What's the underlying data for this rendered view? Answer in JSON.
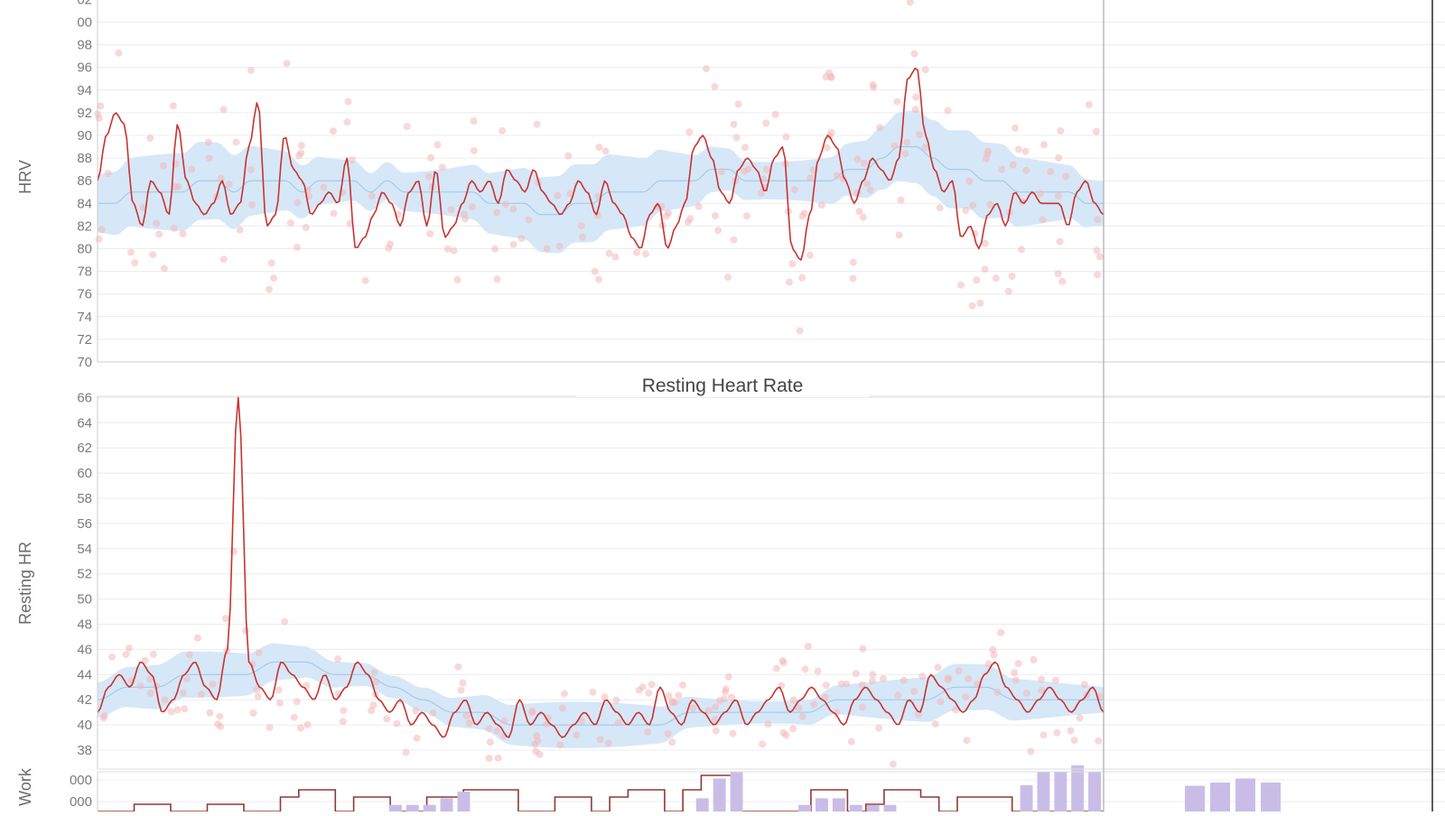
{
  "chart_data": [
    {
      "type": "line",
      "title": "",
      "ylabel": "HRV",
      "ylim": [
        70,
        102
      ],
      "yticks": [
        "70",
        "72",
        "74",
        "76",
        "78",
        "80",
        "82",
        "84",
        "86",
        "88",
        "90",
        "92",
        "94",
        "96",
        "98",
        "00",
        "02"
      ],
      "series": [
        {
          "values": [
            86,
            90,
            92,
            91,
            84,
            82,
            86,
            85,
            83,
            91,
            86,
            84,
            83,
            84,
            86,
            83,
            84,
            89,
            93,
            82,
            83,
            90,
            87,
            86,
            83,
            84,
            85,
            84,
            88,
            80,
            81,
            83,
            85,
            84,
            82,
            85,
            86,
            82,
            87,
            81,
            82,
            84,
            86,
            85,
            86,
            84,
            87,
            86,
            85,
            87,
            85,
            84,
            83,
            84,
            86,
            85,
            83,
            86,
            84,
            83,
            81,
            80,
            83,
            84,
            80,
            82,
            84,
            89,
            90,
            88,
            85,
            84,
            87,
            88,
            87,
            85,
            88,
            89,
            80,
            79,
            83,
            88,
            90,
            89,
            86,
            84,
            86,
            88,
            87,
            86,
            88,
            95,
            96,
            90,
            87,
            85,
            86,
            81,
            82,
            80,
            83,
            84,
            82,
            85,
            84,
            85,
            84,
            84,
            84,
            82,
            85,
            86,
            84,
            83
          ]
        },
        {
          "values": [
            84,
            84,
            85,
            85,
            85,
            85,
            86,
            86,
            85,
            86,
            86,
            86,
            85,
            86,
            86,
            86,
            85,
            86,
            85,
            85,
            85,
            85,
            85,
            84,
            84,
            84,
            83,
            83,
            84,
            84,
            85,
            85,
            85,
            86,
            86,
            86,
            87,
            87,
            86,
            86,
            86,
            86,
            86,
            86,
            87,
            87,
            88,
            89,
            89,
            88,
            87,
            87,
            86,
            86,
            85,
            85,
            85,
            85,
            84,
            84
          ]
        }
      ]
    },
    {
      "type": "line",
      "title": "Resting Heart Rate",
      "ylabel": "Resting HR",
      "ylim": [
        37,
        66
      ],
      "yticks": [
        "38",
        "40",
        "42",
        "44",
        "46",
        "48",
        "50",
        "52",
        "54",
        "56",
        "58",
        "60",
        "62",
        "64",
        "66"
      ],
      "series": [
        {
          "values": [
            41,
            43,
            44,
            43,
            45,
            44,
            41,
            42,
            44,
            45,
            43,
            42,
            46,
            66,
            45,
            43,
            42,
            45,
            44,
            43,
            42,
            44,
            42,
            43,
            45,
            44,
            42,
            41,
            42,
            40,
            41,
            40,
            39,
            41,
            42,
            40,
            41,
            40,
            39,
            42,
            40,
            41,
            40,
            39,
            40,
            41,
            40,
            42,
            41,
            40,
            41,
            40,
            43,
            41,
            40,
            42,
            41,
            40,
            41,
            42,
            40,
            41,
            42,
            43,
            41,
            42,
            43,
            42,
            41,
            40,
            42,
            43,
            42,
            41,
            40,
            42,
            41,
            44,
            43,
            42,
            41,
            42,
            44,
            45,
            43,
            42,
            41,
            42,
            43,
            42,
            41,
            42,
            43,
            41
          ]
        },
        {
          "values": [
            42,
            43,
            43,
            44,
            44,
            44,
            45,
            45,
            44,
            44,
            43,
            42,
            41,
            41,
            40,
            40,
            40,
            40,
            40,
            40,
            41,
            41,
            41,
            41,
            41,
            42,
            42,
            42,
            42,
            43,
            43,
            42,
            42,
            42,
            42
          ]
        }
      ]
    },
    {
      "type": "bar",
      "title": "",
      "ylabel": "Work",
      "yticks": [
        "000",
        "000"
      ],
      "bars": [
        0,
        0,
        0,
        0,
        0,
        0,
        0,
        0,
        0,
        0,
        0,
        0,
        0,
        0,
        0,
        0,
        0,
        1,
        1,
        1,
        2,
        3,
        0,
        0,
        0,
        0,
        0,
        0,
        0,
        0,
        0,
        0,
        0,
        0,
        0,
        2,
        5,
        6,
        0,
        0,
        0,
        1,
        2,
        2,
        1,
        1,
        1,
        0,
        0,
        0,
        0,
        0,
        0,
        0,
        4,
        6,
        6,
        7,
        6
      ],
      "line": [
        0,
        0,
        1,
        1,
        0,
        0,
        1,
        1,
        0,
        0,
        2,
        3,
        3,
        0,
        2,
        2,
        0,
        0,
        2,
        2,
        3,
        3,
        3,
        0,
        0,
        2,
        2,
        0,
        2,
        3,
        3,
        0,
        3,
        5,
        5,
        0,
        0,
        0,
        0,
        3,
        3,
        0,
        1,
        3,
        3,
        2,
        0,
        2,
        2,
        2,
        0,
        0,
        0,
        0,
        0
      ]
    }
  ]
}
